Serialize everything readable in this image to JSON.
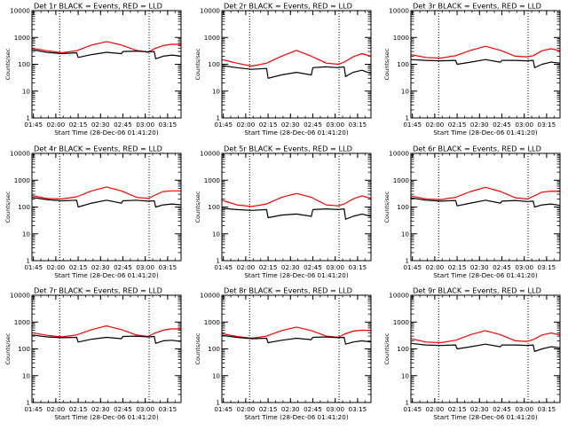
{
  "chart_data": [
    {
      "type": "line",
      "title": "Det 1r BLACK = Events, RED = LLD",
      "xlabel": "Start Time (28-Dec-06 01:41:20)",
      "ylabel": "Counts/sec",
      "ylim": [
        1,
        10000
      ],
      "yscale": "log",
      "xlim": [
        0,
        100
      ],
      "xticks": [
        1,
        16,
        31,
        46,
        61,
        76,
        91
      ],
      "xtick_labels": [
        "01:45",
        "02:00",
        "02:15",
        "02:30",
        "02:45",
        "03:00",
        "03:15"
      ],
      "ytick_labels": [
        "1",
        "10",
        "100",
        "1000",
        "10000"
      ],
      "vlines": [
        18.6,
        78.6
      ],
      "series": [
        {
          "color": "#ff0000",
          "x": [
            0,
            10,
            20,
            30,
            40,
            50,
            60,
            70,
            78,
            82,
            88,
            94,
            100
          ],
          "y": [
            400,
            320,
            270,
            320,
            520,
            700,
            520,
            330,
            280,
            380,
            500,
            560,
            550
          ]
        },
        {
          "color": "#000000",
          "x": [
            0,
            10,
            20,
            30,
            31,
            40,
            50,
            60,
            61,
            70,
            78,
            82,
            83,
            88,
            94,
            100
          ],
          "y": [
            350,
            280,
            250,
            270,
            180,
            230,
            280,
            250,
            300,
            310,
            290,
            300,
            160,
            200,
            220,
            200
          ]
        }
      ]
    },
    {
      "type": "line",
      "title": "Det 2r BLACK = Events, RED = LLD",
      "xlabel": "Start Time (28-Dec-06 01:41:20)",
      "ylabel": "Counts/sec",
      "ylim": [
        1,
        10000
      ],
      "yscale": "log",
      "xlim": [
        0,
        100
      ],
      "xticks": [
        1,
        16,
        31,
        46,
        61,
        76,
        91
      ],
      "xtick_labels": [
        "01:45",
        "02:00",
        "02:15",
        "02:30",
        "02:45",
        "03:00",
        "03:15"
      ],
      "ytick_labels": [
        "1",
        "10",
        "100",
        "1000",
        "10000"
      ],
      "vlines": [
        18.6,
        78.6
      ],
      "series": [
        {
          "color": "#ff0000",
          "x": [
            0,
            10,
            20,
            30,
            40,
            50,
            60,
            70,
            78,
            82,
            88,
            94,
            100
          ],
          "y": [
            150,
            110,
            85,
            110,
            200,
            330,
            200,
            110,
            100,
            120,
            190,
            250,
            200
          ]
        },
        {
          "color": "#000000",
          "x": [
            0,
            10,
            20,
            30,
            31,
            40,
            50,
            60,
            61,
            70,
            78,
            82,
            83,
            88,
            94,
            100
          ],
          "y": [
            90,
            75,
            65,
            70,
            30,
            40,
            50,
            40,
            75,
            80,
            75,
            80,
            35,
            50,
            60,
            45
          ]
        }
      ]
    },
    {
      "type": "line",
      "title": "Det 3r BLACK = Events, RED = LLD",
      "xlabel": "Start Time (28-Dec-06 01:41:20)",
      "ylabel": "Counts/sec",
      "ylim": [
        1,
        10000
      ],
      "yscale": "log",
      "xlim": [
        0,
        100
      ],
      "xticks": [
        1,
        16,
        31,
        46,
        61,
        76,
        91
      ],
      "xtick_labels": [
        "01:45",
        "02:00",
        "02:15",
        "02:30",
        "02:45",
        "03:00",
        "03:15"
      ],
      "ytick_labels": [
        "1",
        "10",
        "100",
        "1000",
        "10000"
      ],
      "vlines": [
        18.6,
        78.6
      ],
      "series": [
        {
          "color": "#ff0000",
          "x": [
            0,
            10,
            20,
            30,
            40,
            50,
            60,
            70,
            78,
            82,
            88,
            94,
            100
          ],
          "y": [
            230,
            180,
            170,
            210,
            330,
            470,
            330,
            200,
            190,
            210,
            320,
            380,
            320
          ]
        },
        {
          "color": "#000000",
          "x": [
            0,
            10,
            20,
            30,
            31,
            40,
            50,
            60,
            61,
            70,
            78,
            82,
            83,
            88,
            94,
            100
          ],
          "y": [
            150,
            140,
            135,
            140,
            100,
            120,
            150,
            120,
            140,
            140,
            135,
            140,
            75,
            100,
            120,
            110
          ]
        }
      ]
    },
    {
      "type": "line",
      "title": "Det 4r BLACK = Events, RED = LLD",
      "xlabel": "Start Time (28-Dec-06 01:41:20)",
      "ylabel": "Counts/sec",
      "ylim": [
        1,
        10000
      ],
      "yscale": "log",
      "xlim": [
        0,
        100
      ],
      "xticks": [
        1,
        16,
        31,
        46,
        61,
        76,
        91
      ],
      "xtick_labels": [
        "01:45",
        "02:00",
        "02:15",
        "02:30",
        "02:45",
        "03:00",
        "03:15"
      ],
      "ytick_labels": [
        "1",
        "10",
        "100",
        "1000",
        "10000"
      ],
      "vlines": [
        18.6,
        78.6
      ],
      "series": [
        {
          "color": "#ff0000",
          "x": [
            0,
            10,
            20,
            30,
            40,
            50,
            60,
            70,
            78,
            82,
            88,
            94,
            100
          ],
          "y": [
            270,
            210,
            200,
            240,
            400,
            560,
            400,
            230,
            210,
            270,
            380,
            400,
            400
          ]
        },
        {
          "color": "#000000",
          "x": [
            0,
            10,
            20,
            30,
            31,
            40,
            50,
            60,
            61,
            70,
            78,
            82,
            83,
            88,
            94,
            100
          ],
          "y": [
            230,
            190,
            170,
            180,
            100,
            140,
            180,
            140,
            170,
            180,
            165,
            170,
            100,
            120,
            130,
            120
          ]
        }
      ]
    },
    {
      "type": "line",
      "title": "Det 5r BLACK = Events, RED = LLD",
      "xlabel": "Start Time (28-Dec-06 01:41:20)",
      "ylabel": "Counts/sec",
      "ylim": [
        1,
        10000
      ],
      "yscale": "log",
      "xlim": [
        0,
        100
      ],
      "xticks": [
        1,
        16,
        31,
        46,
        61,
        76,
        91
      ],
      "xtick_labels": [
        "01:45",
        "02:00",
        "02:15",
        "02:30",
        "02:45",
        "03:00",
        "03:15"
      ],
      "ytick_labels": [
        "1",
        "10",
        "100",
        "1000",
        "10000"
      ],
      "vlines": [
        18.6,
        78.6
      ],
      "series": [
        {
          "color": "#ff0000",
          "x": [
            0,
            10,
            20,
            30,
            40,
            50,
            60,
            70,
            78,
            82,
            88,
            94,
            100
          ],
          "y": [
            180,
            120,
            105,
            130,
            230,
            320,
            230,
            120,
            110,
            130,
            200,
            260,
            210
          ]
        },
        {
          "color": "#000000",
          "x": [
            0,
            10,
            20,
            30,
            31,
            40,
            50,
            60,
            61,
            70,
            78,
            82,
            83,
            88,
            94,
            100
          ],
          "y": [
            90,
            80,
            75,
            80,
            40,
            50,
            55,
            45,
            80,
            85,
            80,
            85,
            35,
            45,
            55,
            45
          ]
        }
      ]
    },
    {
      "type": "line",
      "title": "Det 6r BLACK = Events, RED = LLD",
      "xlabel": "Start Time (28-Dec-06 01:41:20)",
      "ylabel": "Counts/sec",
      "ylim": [
        1,
        10000
      ],
      "yscale": "log",
      "xlim": [
        0,
        100
      ],
      "xticks": [
        1,
        16,
        31,
        46,
        61,
        76,
        91
      ],
      "xtick_labels": [
        "01:45",
        "02:00",
        "02:15",
        "02:30",
        "02:45",
        "03:00",
        "03:15"
      ],
      "ytick_labels": [
        "1",
        "10",
        "100",
        "1000",
        "10000"
      ],
      "vlines": [
        18.6,
        78.6
      ],
      "series": [
        {
          "color": "#ff0000",
          "x": [
            0,
            10,
            20,
            30,
            40,
            50,
            60,
            70,
            78,
            82,
            88,
            94,
            100
          ],
          "y": [
            260,
            200,
            190,
            230,
            380,
            540,
            380,
            220,
            200,
            250,
            360,
            390,
            380
          ]
        },
        {
          "color": "#000000",
          "x": [
            0,
            10,
            20,
            30,
            31,
            40,
            50,
            60,
            61,
            70,
            78,
            82,
            83,
            88,
            94,
            100
          ],
          "y": [
            220,
            180,
            165,
            175,
            110,
            140,
            180,
            140,
            165,
            175,
            160,
            165,
            100,
            120,
            130,
            115
          ]
        }
      ]
    },
    {
      "type": "line",
      "title": "Det 7r BLACK = Events, RED = LLD",
      "xlabel": "Start Time (28-Dec-06 01:41:20)",
      "ylabel": "Counts/sec",
      "ylim": [
        1,
        10000
      ],
      "yscale": "log",
      "xlim": [
        0,
        100
      ],
      "xticks": [
        1,
        16,
        31,
        46,
        61,
        76,
        91
      ],
      "xtick_labels": [
        "01:45",
        "02:00",
        "02:15",
        "02:30",
        "02:45",
        "03:00",
        "03:15"
      ],
      "ytick_labels": [
        "1",
        "10",
        "100",
        "1000",
        "10000"
      ],
      "vlines": [
        18.6,
        78.6
      ],
      "series": [
        {
          "color": "#ff0000",
          "x": [
            0,
            10,
            20,
            30,
            40,
            50,
            60,
            70,
            78,
            82,
            88,
            94,
            100
          ],
          "y": [
            400,
            320,
            280,
            330,
            520,
            720,
            520,
            330,
            290,
            380,
            500,
            560,
            550
          ]
        },
        {
          "color": "#000000",
          "x": [
            0,
            10,
            20,
            30,
            31,
            40,
            50,
            60,
            61,
            70,
            78,
            82,
            83,
            88,
            94,
            100
          ],
          "y": [
            330,
            280,
            260,
            270,
            180,
            230,
            270,
            240,
            290,
            300,
            280,
            290,
            160,
            200,
            210,
            190
          ]
        }
      ]
    },
    {
      "type": "line",
      "title": "Det 8r BLACK = Events, RED = LLD",
      "xlabel": "Start Time (28-Dec-06 01:41:20)",
      "ylabel": "Counts/sec",
      "ylim": [
        1,
        10000
      ],
      "yscale": "log",
      "xlim": [
        0,
        100
      ],
      "xticks": [
        1,
        16,
        31,
        46,
        61,
        76,
        91
      ],
      "xtick_labels": [
        "01:45",
        "02:00",
        "02:15",
        "02:30",
        "02:45",
        "03:00",
        "03:15"
      ],
      "ytick_labels": [
        "1",
        "10",
        "100",
        "1000",
        "10000"
      ],
      "vlines": [
        18.6,
        78.6
      ],
      "series": [
        {
          "color": "#ff0000",
          "x": [
            0,
            10,
            20,
            30,
            40,
            50,
            60,
            70,
            78,
            82,
            88,
            94,
            100
          ],
          "y": [
            370,
            290,
            250,
            300,
            480,
            650,
            480,
            300,
            270,
            350,
            460,
            500,
            480
          ]
        },
        {
          "color": "#000000",
          "x": [
            0,
            10,
            20,
            30,
            31,
            40,
            50,
            60,
            61,
            70,
            78,
            82,
            83,
            88,
            94,
            100
          ],
          "y": [
            320,
            270,
            240,
            250,
            170,
            210,
            250,
            220,
            270,
            280,
            260,
            270,
            150,
            180,
            200,
            180
          ]
        }
      ]
    },
    {
      "type": "line",
      "title": "Det 9r BLACK = Events, RED = LLD",
      "xlabel": "Start Time (28-Dec-06 01:41:20)",
      "ylabel": "Counts/sec",
      "ylim": [
        1,
        10000
      ],
      "yscale": "log",
      "xlim": [
        0,
        100
      ],
      "xticks": [
        1,
        16,
        31,
        46,
        61,
        76,
        91
      ],
      "xtick_labels": [
        "01:45",
        "02:00",
        "02:15",
        "02:30",
        "02:45",
        "03:00",
        "03:15"
      ],
      "ytick_labels": [
        "1",
        "10",
        "100",
        "1000",
        "10000"
      ],
      "vlines": [
        18.6,
        78.6
      ],
      "series": [
        {
          "color": "#ff0000",
          "x": [
            0,
            10,
            20,
            30,
            40,
            50,
            60,
            70,
            78,
            82,
            88,
            94,
            100
          ],
          "y": [
            240,
            180,
            170,
            210,
            340,
            480,
            340,
            200,
            190,
            220,
            330,
            390,
            330
          ]
        },
        {
          "color": "#000000",
          "x": [
            0,
            10,
            20,
            30,
            31,
            40,
            50,
            60,
            61,
            70,
            78,
            82,
            83,
            88,
            94,
            100
          ],
          "y": [
            160,
            140,
            135,
            140,
            100,
            120,
            150,
            120,
            140,
            140,
            135,
            140,
            80,
            100,
            120,
            110
          ]
        }
      ]
    }
  ]
}
